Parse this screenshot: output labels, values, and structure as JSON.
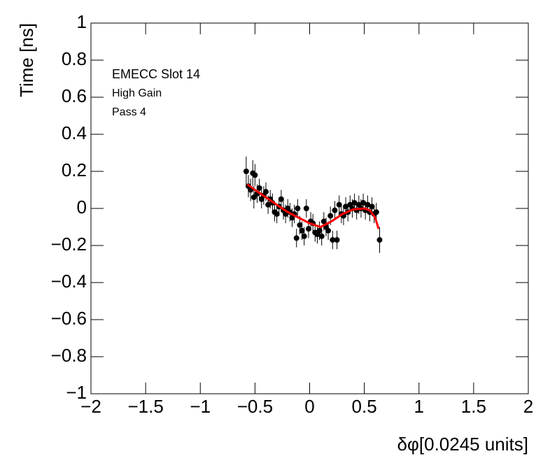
{
  "chart_data": {
    "type": "scatter",
    "xlabel": "δφ[0.0245 units]",
    "ylabel": "Time [ns]",
    "annotations": [
      "EMECC Slot 14",
      "High Gain",
      "Pass 4"
    ],
    "xlim": [
      -2,
      2
    ],
    "ylim": [
      -1,
      1
    ],
    "xticks": [
      {
        "value": -2,
        "label": "−2"
      },
      {
        "value": -1.5,
        "label": "−1.5"
      },
      {
        "value": -1,
        "label": "−1"
      },
      {
        "value": -0.5,
        "label": "−0.5"
      },
      0,
      0.5,
      1,
      1.5,
      2
    ],
    "yticks": [
      {
        "value": -1,
        "label": "−1"
      },
      {
        "value": -0.8,
        "label": "−0.8"
      },
      {
        "value": -0.6,
        "label": "−0.6"
      },
      {
        "value": -0.4,
        "label": "−0.4"
      },
      {
        "value": -0.2,
        "label": "−0.2"
      },
      0,
      0.2,
      0.4,
      0.6,
      0.8,
      1
    ],
    "series": [
      {
        "color": "#000000",
        "x": [
          -0.58,
          -0.56,
          -0.54,
          -0.52,
          -0.51,
          -0.5,
          -0.48,
          -0.46,
          -0.44,
          -0.42,
          -0.4,
          -0.38,
          -0.36,
          -0.34,
          -0.32,
          -0.3,
          -0.28,
          -0.26,
          -0.24,
          -0.22,
          -0.2,
          -0.18,
          -0.16,
          -0.14,
          -0.12,
          -0.11,
          -0.09,
          -0.07,
          -0.05,
          -0.03,
          -0.01,
          0.01,
          0.03,
          0.05,
          0.07,
          0.09,
          0.11,
          0.13,
          0.15,
          0.17,
          0.19,
          0.21,
          0.23,
          0.25,
          0.27,
          0.29,
          0.31,
          0.33,
          0.35,
          0.37,
          0.39,
          0.41,
          0.43,
          0.45,
          0.47,
          0.49,
          0.51,
          0.53,
          0.55,
          0.57,
          0.59,
          0.61,
          0.64
        ],
        "values": [
          0.2,
          0.12,
          0.1,
          0.19,
          0.06,
          0.18,
          0.08,
          0.11,
          0.05,
          0.07,
          0.09,
          0.02,
          0.05,
          0.03,
          -0.02,
          -0.03,
          0.01,
          0.05,
          -0.01,
          -0.03,
          0,
          -0.02,
          -0.05,
          -0.03,
          -0.16,
          0,
          -0.09,
          -0.12,
          -0.15,
          0,
          -0.11,
          -0.07,
          -0.08,
          -0.13,
          -0.14,
          -0.12,
          -0.15,
          -0.07,
          -0.1,
          -0.12,
          -0.04,
          -0.17,
          -0.01,
          -0.17,
          0.02,
          -0.03,
          -0.04,
          0.01,
          -0.02,
          0.02,
          0,
          0.03,
          -0.01,
          0.02,
          0,
          0.03,
          -0.01,
          0.02,
          -0.02,
          0.01,
          -0.03,
          -0.02,
          -0.17
        ],
        "errors": [
          0.08,
          0.06,
          0.06,
          0.07,
          0.06,
          0.06,
          0.05,
          0.05,
          0.05,
          0.05,
          0.05,
          0.05,
          0.05,
          0.05,
          0.05,
          0.05,
          0.05,
          0.05,
          0.05,
          0.05,
          0.05,
          0.05,
          0.05,
          0.05,
          0.05,
          0.05,
          0.05,
          0.05,
          0.05,
          0.05,
          0.05,
          0.05,
          0.05,
          0.05,
          0.05,
          0.05,
          0.05,
          0.05,
          0.05,
          0.05,
          0.05,
          0.05,
          0.05,
          0.05,
          0.05,
          0.05,
          0.05,
          0.05,
          0.05,
          0.05,
          0.05,
          0.05,
          0.05,
          0.05,
          0.05,
          0.05,
          0.05,
          0.05,
          0.05,
          0.05,
          0.05,
          0.05,
          0.07
        ]
      },
      {
        "color": "#ff0000",
        "line": true,
        "x": [
          -0.57,
          -0.5,
          -0.4,
          -0.3,
          -0.2,
          -0.1,
          0,
          0.1,
          0.2,
          0.3,
          0.4,
          0.5,
          0.55,
          0.6,
          0.63
        ],
        "values": [
          0.13,
          0.1,
          0.06,
          0.02,
          -0.02,
          -0.05,
          -0.08,
          -0.1,
          -0.07,
          -0.03,
          -0.005,
          0,
          -0.01,
          -0.05,
          -0.11
        ]
      }
    ]
  }
}
